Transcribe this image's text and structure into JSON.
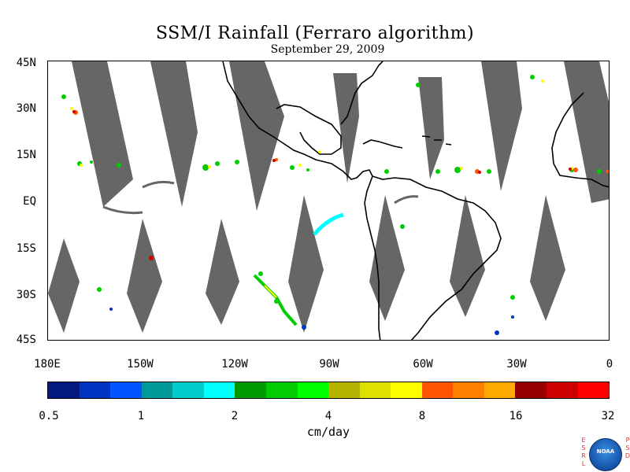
{
  "title": "SSM/I Rainfall (Ferraro algorithm)",
  "subtitle": "September 29, 2009",
  "map": {
    "region": "Tropical Western Hemisphere / Eastern Pacific / Atlantic",
    "lon_range": [
      -180,
      0
    ],
    "lat_range": [
      -45,
      45
    ],
    "background_color": "#ffffff",
    "no_data_color": "#666666",
    "coastline_color": "#000000"
  },
  "lat_labels": [
    "45N",
    "30N",
    "15N",
    "EQ",
    "15S",
    "30S",
    "45S"
  ],
  "lon_labels": [
    "180E",
    "150W",
    "120W",
    "90W",
    "60W",
    "30W",
    "0"
  ],
  "colorbar": {
    "colors": [
      "#001a80",
      "#0033c0",
      "#0055ff",
      "#009999",
      "#00cccc",
      "#00ffff",
      "#009900",
      "#00cc00",
      "#00ff00",
      "#b3b300",
      "#e0e000",
      "#ffff00",
      "#ff5500",
      "#ff8000",
      "#ffaa00",
      "#990000",
      "#cc0000",
      "#ff0000"
    ],
    "labels": [
      "0.5",
      "1",
      "2",
      "4",
      "8",
      "16",
      "32"
    ],
    "units": "cm/day"
  },
  "logo": {
    "name": "NOAA",
    "left_letters": [
      "E",
      "S",
      "R",
      "L"
    ],
    "right_letters": [
      "P",
      "S",
      "D"
    ]
  }
}
